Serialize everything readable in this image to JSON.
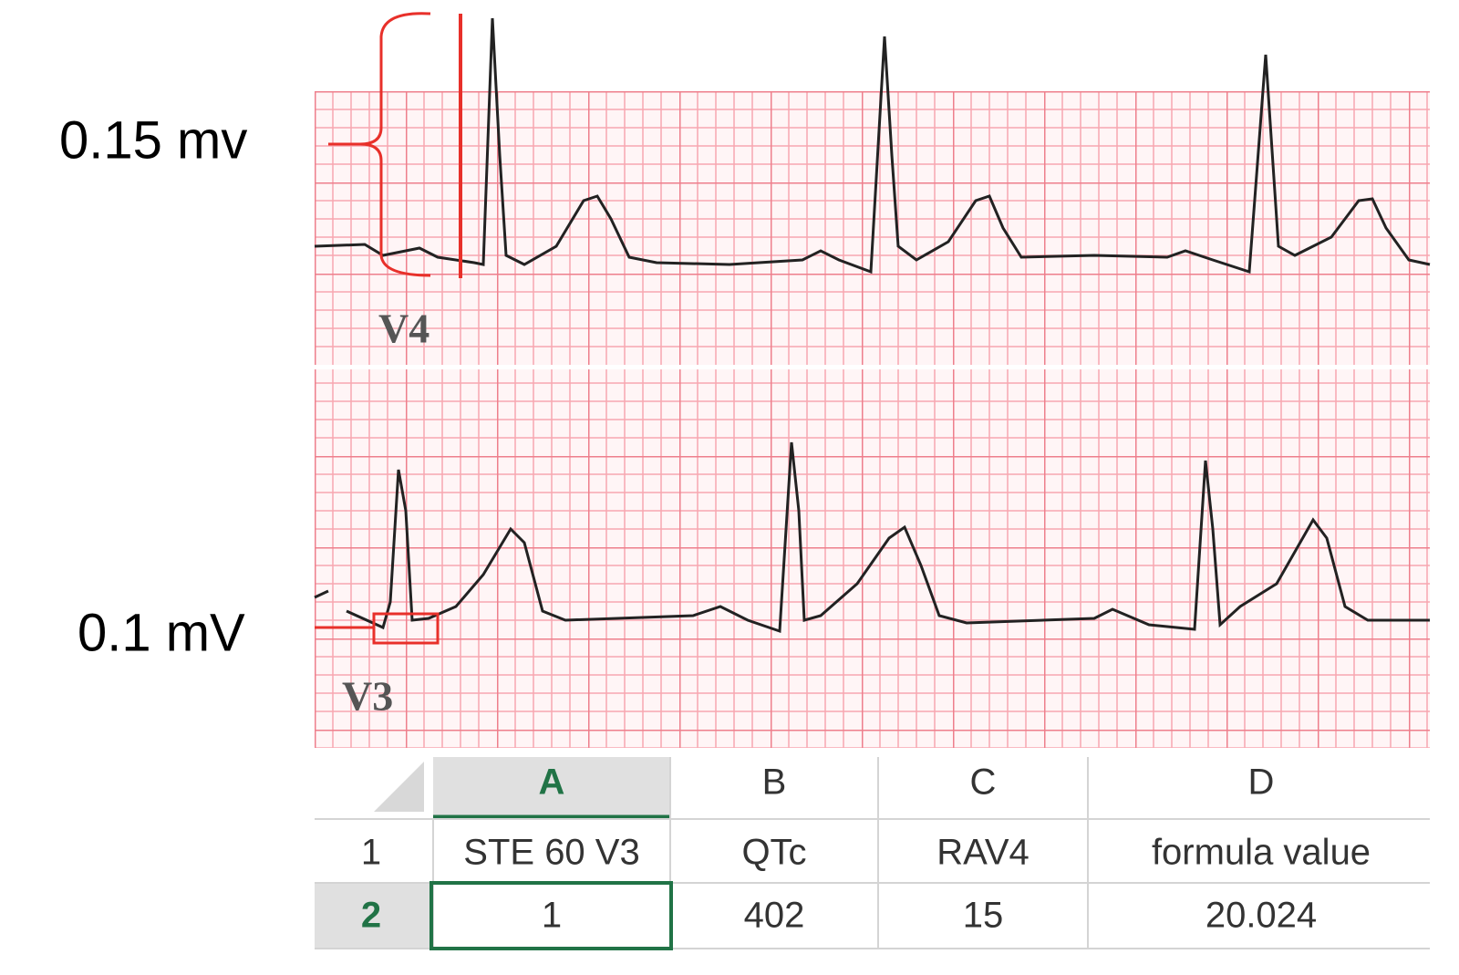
{
  "annotations": {
    "v4_amplitude": "0.15 mv",
    "v3_amplitude": "0.1 mV",
    "v4_lead": "V4",
    "v3_lead": "V3"
  },
  "table": {
    "columns": [
      "A",
      "B",
      "C",
      "D"
    ],
    "row_numbers": [
      "1",
      "2"
    ],
    "rows": [
      [
        "STE 60 V3",
        "QTc",
        "RAV4",
        "formula value"
      ],
      [
        1,
        402,
        15,
        20.024
      ]
    ]
  }
}
